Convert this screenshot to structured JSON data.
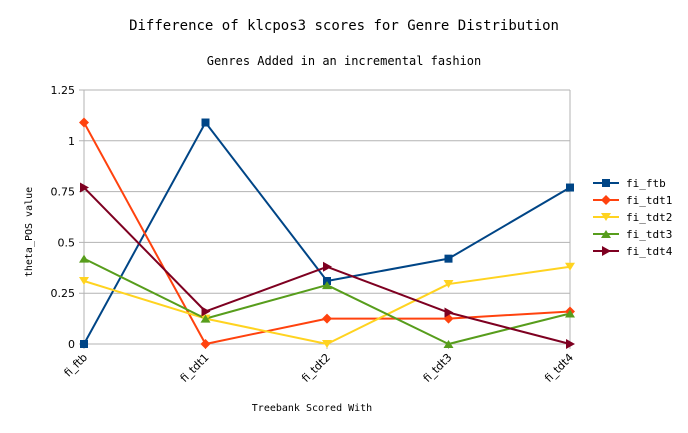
{
  "chart_data": {
    "type": "line",
    "title": "Difference of klcpos3 scores for Genre Distribution",
    "subtitle": "Genres Added in an incremental fashion",
    "xlabel": "Treebank Scored With",
    "ylabel": "theta_POS value",
    "categories": [
      "fi_ftb",
      "fi_tdt1",
      "fi_tdt2",
      "fi_tdt3",
      "fi_tdt4"
    ],
    "ylim": [
      0,
      1.25
    ],
    "yticks": [
      "0",
      "0.25",
      "0.5",
      "0.75",
      "1",
      "1.25"
    ],
    "ytick_values": [
      0,
      0.25,
      0.5,
      0.75,
      1,
      1.25
    ],
    "grid": "horizontal",
    "legend_position": "right",
    "series": [
      {
        "name": "fi_ftb",
        "values": [
          0,
          1.09,
          0.31,
          0.42,
          0.77
        ],
        "color": "#004586",
        "marker": "square"
      },
      {
        "name": "fi_tdt1",
        "values": [
          1.09,
          0,
          0.125,
          0.125,
          0.16
        ],
        "color": "#ff420e",
        "marker": "diamond"
      },
      {
        "name": "fi_tdt2",
        "values": [
          0.31,
          0.125,
          0,
          0.295,
          0.38
        ],
        "color": "#ffd320",
        "marker": "triangle-down"
      },
      {
        "name": "fi_tdt3",
        "values": [
          0.42,
          0.125,
          0.29,
          0,
          0.15
        ],
        "color": "#579d1c",
        "marker": "triangle-up"
      },
      {
        "name": "fi_tdt4",
        "values": [
          0.77,
          0.16,
          0.38,
          0.155,
          0
        ],
        "color": "#7e0021",
        "marker": "arrow-right"
      }
    ]
  }
}
